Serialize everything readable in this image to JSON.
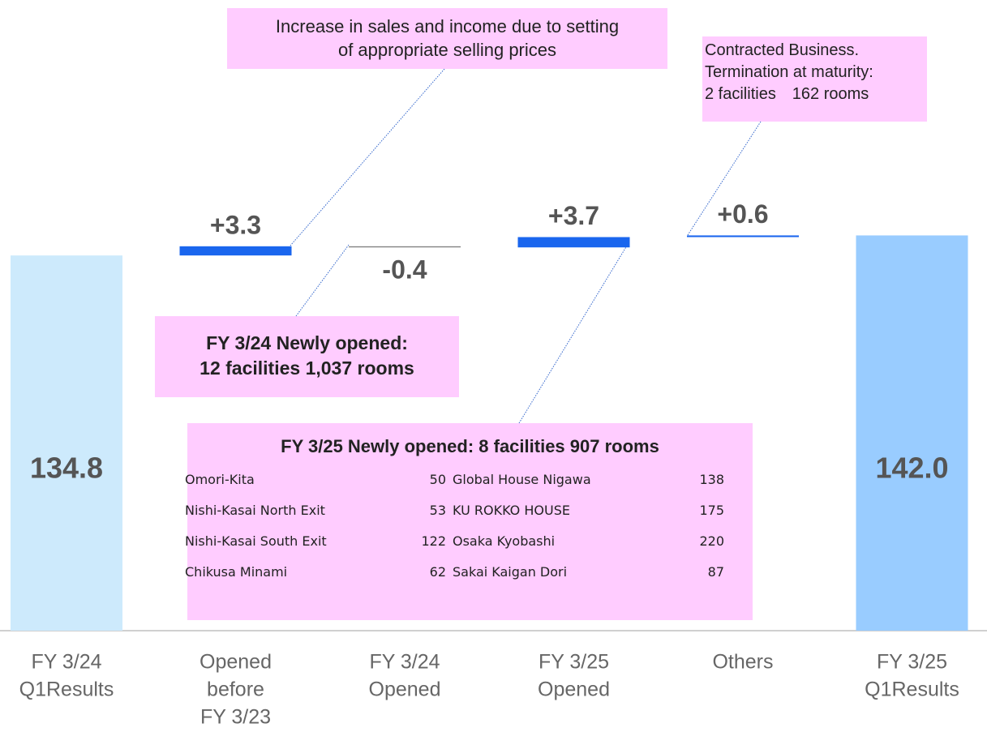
{
  "chart_data": {
    "type": "waterfall",
    "categories": [
      [
        "FY 3/24",
        "Q1Results"
      ],
      [
        "Opened",
        "before",
        "FY 3/23"
      ],
      [
        "FY 3/24",
        "Opened"
      ],
      [
        "FY 3/25",
        "Opened"
      ],
      [
        "Others"
      ],
      [
        "FY 3/25",
        "Q1Results"
      ]
    ],
    "values": [
      134.8,
      3.3,
      -0.4,
      3.7,
      0.6,
      142.0
    ],
    "value_labels": [
      "134.8",
      "+3.3",
      "-0.4",
      "+3.7",
      "+0.6",
      "142.0"
    ],
    "measure": [
      "total",
      "relative",
      "relative",
      "relative",
      "relative",
      "total"
    ],
    "colors": [
      "#cdeafc",
      "#1a66ee",
      "#808080",
      "#1a66ee",
      "#1a66ee",
      "#99ccff"
    ],
    "ylim": [
      0,
      226
    ],
    "annotations": [
      {
        "lines": [
          "Increase in sales and income due to setting",
          "of appropriate selling prices"
        ]
      },
      {
        "lines": [
          "Contracted Business.",
          "Termination at maturity:",
          "2 facilities　162 rooms"
        ]
      },
      {
        "lines": [
          "FY 3/24 Newly opened:",
          "12 facilities 1,037 rooms"
        ]
      },
      {
        "title": "FY 3/25 Newly opened: 8 facilities  907 rooms",
        "rows": [
          [
            "Omori-Kita",
            "50",
            "Global House Nigawa",
            "138"
          ],
          [
            "Nishi-Kasai North Exit",
            "53",
            "KU ROKKO HOUSE",
            "175"
          ],
          [
            "Nishi-Kasai South Exit",
            "122",
            "Osaka Kyobashi",
            "220"
          ],
          [
            "Chikusa Minami",
            "62",
            "Sakai Kaigan Dori",
            "87"
          ]
        ]
      }
    ]
  }
}
